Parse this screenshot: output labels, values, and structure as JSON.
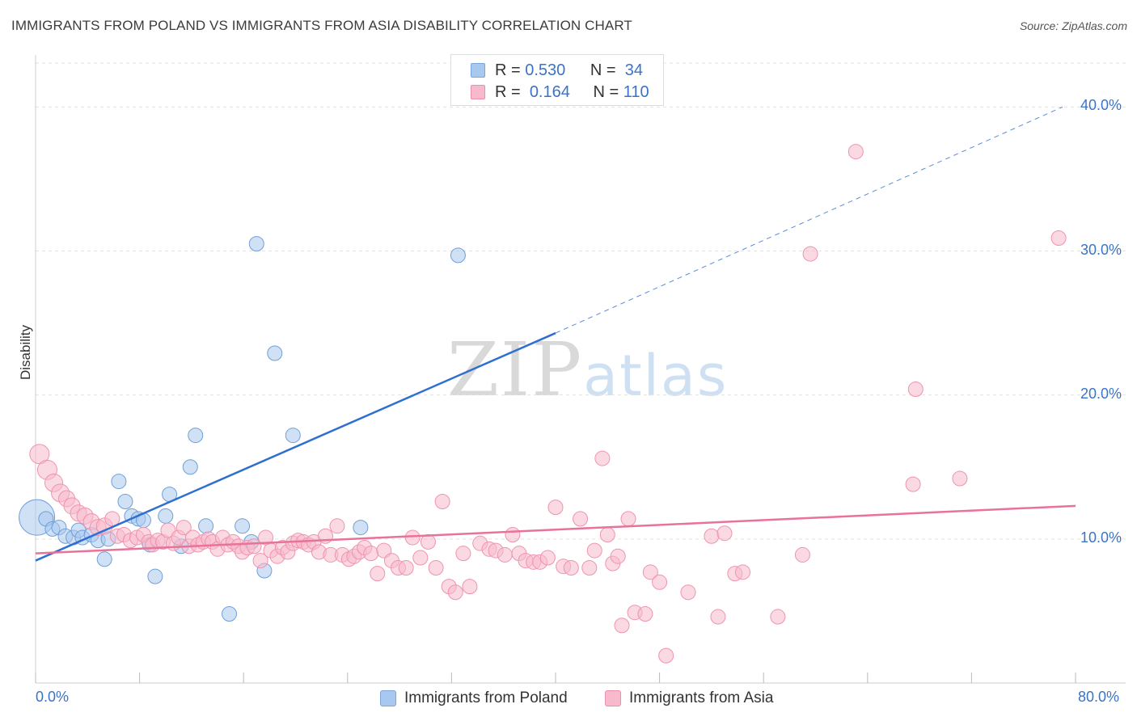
{
  "title": "IMMIGRANTS FROM POLAND VS IMMIGRANTS FROM ASIA DISABILITY CORRELATION CHART",
  "source": "Source: ZipAtlas.com",
  "watermark": {
    "zip": "ZIP",
    "atlas": "atlas"
  },
  "legend_top": [
    {
      "r_label": "R =",
      "r_value": "0.530",
      "n_label": "N =",
      "n_value": "34",
      "color": "#a9c8ef",
      "border": "#7aa6dc"
    },
    {
      "r_label": "R =",
      "r_value": "0.164",
      "n_label": "N =",
      "n_value": "110",
      "color": "#f7b9cc",
      "border": "#ee8eab"
    }
  ],
  "chart_data": {
    "type": "scatter",
    "title": "IMMIGRANTS FROM POLAND VS IMMIGRANTS FROM ASIA DISABILITY CORRELATION CHART",
    "xlabel": "",
    "ylabel": "Disability",
    "xlim": [
      0,
      80
    ],
    "ylim": [
      0,
      43.5
    ],
    "x_tick_labels": [
      "0.0%",
      "80.0%"
    ],
    "y_ticks": [
      10,
      20,
      30,
      40
    ],
    "y_tick_labels": [
      "10.0%",
      "20.0%",
      "30.0%",
      "40.0%"
    ],
    "grid": true,
    "series": [
      {
        "name": "Immigrants from Poland",
        "color": "#a9c8ef",
        "stroke": "#6e9fd8",
        "line_color": "#2f6fd0",
        "trend": {
          "x0": 0,
          "y0": 8.5,
          "x1": 40,
          "y1": 24.3,
          "dash_to_x": 79,
          "dash_to_y": 40.0
        },
        "points": [
          [
            0.1,
            11.5,
            22
          ],
          [
            0.8,
            11.4,
            9
          ],
          [
            1.3,
            10.7,
            9
          ],
          [
            1.8,
            10.8,
            9
          ],
          [
            2.3,
            10.2,
            9
          ],
          [
            2.9,
            10.1,
            9
          ],
          [
            3.3,
            10.6,
            9
          ],
          [
            3.6,
            10.1,
            9
          ],
          [
            4.3,
            10.3,
            9
          ],
          [
            4.8,
            9.9,
            9
          ],
          [
            5.3,
            8.6,
            9
          ],
          [
            5.6,
            10.0,
            9
          ],
          [
            6.4,
            14.0,
            9
          ],
          [
            6.9,
            12.6,
            9
          ],
          [
            7.4,
            11.6,
            9
          ],
          [
            7.9,
            11.4,
            9
          ],
          [
            8.3,
            11.3,
            9
          ],
          [
            8.8,
            9.6,
            9
          ],
          [
            9.2,
            7.4,
            9
          ],
          [
            10.0,
            11.6,
            9
          ],
          [
            10.3,
            13.1,
            9
          ],
          [
            11.2,
            9.5,
            9
          ],
          [
            11.9,
            15.0,
            9
          ],
          [
            12.3,
            17.2,
            9
          ],
          [
            13.1,
            10.9,
            9
          ],
          [
            14.9,
            4.8,
            9
          ],
          [
            15.9,
            10.9,
            9
          ],
          [
            16.6,
            9.8,
            9
          ],
          [
            17.0,
            30.5,
            9
          ],
          [
            17.6,
            7.8,
            9
          ],
          [
            18.4,
            22.9,
            9
          ],
          [
            19.8,
            17.2,
            9
          ],
          [
            25.0,
            10.8,
            9
          ],
          [
            32.5,
            29.7,
            9
          ]
        ]
      },
      {
        "name": "Immigrants from Asia",
        "color": "#f7b9cc",
        "stroke": "#ef93ae",
        "line_color": "#e8729a",
        "trend": {
          "x0": 0,
          "y0": 9.0,
          "x1": 80,
          "y1": 12.3
        },
        "points": [
          [
            0.3,
            15.9,
            12
          ],
          [
            0.9,
            14.8,
            12
          ],
          [
            1.4,
            13.9,
            11
          ],
          [
            1.9,
            13.2,
            11
          ],
          [
            2.4,
            12.8,
            10
          ],
          [
            2.8,
            12.3,
            10
          ],
          [
            3.3,
            11.8,
            10
          ],
          [
            3.8,
            11.6,
            10
          ],
          [
            4.3,
            11.2,
            10
          ],
          [
            4.8,
            10.8,
            10
          ],
          [
            5.3,
            10.9,
            10
          ],
          [
            5.9,
            11.4,
            9
          ],
          [
            6.3,
            10.2,
            9
          ],
          [
            6.8,
            10.3,
            9
          ],
          [
            7.3,
            9.9,
            9
          ],
          [
            7.8,
            10.1,
            9
          ],
          [
            8.3,
            10.3,
            9
          ],
          [
            8.7,
            9.8,
            9
          ],
          [
            9.0,
            9.6,
            9
          ],
          [
            9.4,
            9.9,
            9
          ],
          [
            9.8,
            9.8,
            9
          ],
          [
            10.2,
            10.6,
            9
          ],
          [
            10.6,
            9.7,
            9
          ],
          [
            11.0,
            10.1,
            9
          ],
          [
            11.4,
            10.8,
            9
          ],
          [
            11.8,
            9.5,
            9
          ],
          [
            12.1,
            10.1,
            9
          ],
          [
            12.5,
            9.6,
            9
          ],
          [
            12.9,
            9.8,
            9
          ],
          [
            13.3,
            10.0,
            9
          ],
          [
            13.6,
            9.8,
            9
          ],
          [
            14.0,
            9.3,
            9
          ],
          [
            14.4,
            10.1,
            9
          ],
          [
            14.8,
            9.6,
            9
          ],
          [
            15.2,
            9.8,
            9
          ],
          [
            15.6,
            9.5,
            9
          ],
          [
            15.9,
            9.1,
            9
          ],
          [
            16.3,
            9.4,
            9
          ],
          [
            16.8,
            9.5,
            9
          ],
          [
            17.3,
            8.5,
            9
          ],
          [
            17.7,
            10.1,
            9
          ],
          [
            18.1,
            9.2,
            9
          ],
          [
            18.6,
            8.8,
            9
          ],
          [
            19.0,
            9.4,
            9
          ],
          [
            19.4,
            9.1,
            9
          ],
          [
            19.8,
            9.7,
            9
          ],
          [
            20.2,
            9.9,
            9
          ],
          [
            20.6,
            9.8,
            9
          ],
          [
            21.0,
            9.6,
            9
          ],
          [
            21.4,
            9.8,
            9
          ],
          [
            21.8,
            9.1,
            9
          ],
          [
            22.3,
            10.2,
            9
          ],
          [
            22.7,
            8.9,
            9
          ],
          [
            23.2,
            10.9,
            9
          ],
          [
            23.6,
            8.9,
            9
          ],
          [
            24.1,
            8.6,
            9
          ],
          [
            24.5,
            8.8,
            9
          ],
          [
            24.9,
            9.1,
            9
          ],
          [
            25.3,
            9.4,
            9
          ],
          [
            25.8,
            9.0,
            9
          ],
          [
            26.3,
            7.6,
            9
          ],
          [
            26.8,
            9.2,
            9
          ],
          [
            27.4,
            8.5,
            9
          ],
          [
            27.9,
            8.0,
            9
          ],
          [
            28.5,
            8.0,
            9
          ],
          [
            29.0,
            10.1,
            9
          ],
          [
            29.6,
            8.7,
            9
          ],
          [
            30.2,
            9.8,
            9
          ],
          [
            30.8,
            8.0,
            9
          ],
          [
            31.3,
            12.6,
            9
          ],
          [
            31.8,
            6.7,
            9
          ],
          [
            32.3,
            6.3,
            9
          ],
          [
            32.9,
            9.0,
            9
          ],
          [
            33.4,
            6.7,
            9
          ],
          [
            34.2,
            9.7,
            9
          ],
          [
            34.9,
            9.3,
            9
          ],
          [
            35.4,
            9.2,
            9
          ],
          [
            36.1,
            8.9,
            9
          ],
          [
            36.7,
            10.3,
            9
          ],
          [
            37.2,
            9.0,
            9
          ],
          [
            37.7,
            8.5,
            9
          ],
          [
            38.3,
            8.4,
            9
          ],
          [
            38.8,
            8.4,
            9
          ],
          [
            39.4,
            8.7,
            9
          ],
          [
            40.0,
            12.2,
            9
          ],
          [
            40.6,
            8.1,
            9
          ],
          [
            41.2,
            8.0,
            9
          ],
          [
            41.9,
            11.4,
            9
          ],
          [
            42.6,
            8.0,
            9
          ],
          [
            43.0,
            9.2,
            9
          ],
          [
            43.6,
            15.6,
            9
          ],
          [
            44.0,
            10.3,
            9
          ],
          [
            44.4,
            8.3,
            9
          ],
          [
            44.8,
            8.8,
            9
          ],
          [
            45.1,
            4.0,
            9
          ],
          [
            45.6,
            11.4,
            9
          ],
          [
            46.1,
            4.9,
            9
          ],
          [
            46.9,
            4.8,
            9
          ],
          [
            47.3,
            7.7,
            9
          ],
          [
            48.0,
            7.0,
            9
          ],
          [
            48.5,
            1.9,
            9
          ],
          [
            50.2,
            6.3,
            9
          ],
          [
            52.0,
            10.2,
            9
          ],
          [
            52.5,
            4.6,
            9
          ],
          [
            53.0,
            10.4,
            9
          ],
          [
            53.8,
            7.6,
            9
          ],
          [
            54.4,
            7.7,
            9
          ],
          [
            57.1,
            4.6,
            9
          ],
          [
            59.6,
            29.8,
            9
          ],
          [
            59.0,
            8.9,
            9
          ],
          [
            63.1,
            36.9,
            9
          ],
          [
            67.5,
            13.8,
            9
          ],
          [
            67.7,
            20.4,
            9
          ],
          [
            71.1,
            14.2,
            9
          ],
          [
            78.7,
            30.9,
            9
          ]
        ]
      }
    ]
  },
  "legend_bottom": [
    {
      "label": "Immigrants from Poland",
      "color": "#a9c8ef",
      "border": "#7aa6dc"
    },
    {
      "label": "Immigrants from Asia",
      "color": "#f7b9cc",
      "border": "#ee8eab"
    }
  ]
}
